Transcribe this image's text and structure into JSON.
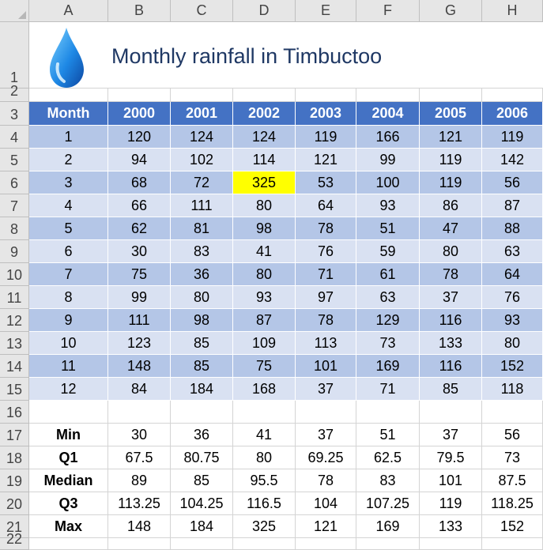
{
  "sheet": {
    "columns": [
      "A",
      "B",
      "C",
      "D",
      "E",
      "F",
      "G",
      "H"
    ],
    "rows": [
      "1",
      "2",
      "3",
      "4",
      "5",
      "6",
      "7",
      "8",
      "9",
      "10",
      "11",
      "12",
      "13",
      "14",
      "15",
      "16",
      "17",
      "18",
      "19",
      "20",
      "21",
      "22"
    ],
    "title": "Monthly rainfall in Timbuctoo",
    "table": {
      "headers": [
        "Month",
        "2000",
        "2001",
        "2002",
        "2003",
        "2004",
        "2005",
        "2006"
      ],
      "rows": [
        [
          "1",
          "120",
          "124",
          "124",
          "119",
          "166",
          "121",
          "119"
        ],
        [
          "2",
          "94",
          "102",
          "114",
          "121",
          "99",
          "119",
          "142"
        ],
        [
          "3",
          "68",
          "72",
          "325",
          "53",
          "100",
          "119",
          "56"
        ],
        [
          "4",
          "66",
          "111",
          "80",
          "64",
          "93",
          "86",
          "87"
        ],
        [
          "5",
          "62",
          "81",
          "98",
          "78",
          "51",
          "47",
          "88"
        ],
        [
          "6",
          "30",
          "83",
          "41",
          "76",
          "59",
          "80",
          "63"
        ],
        [
          "7",
          "75",
          "36",
          "80",
          "71",
          "61",
          "78",
          "64"
        ],
        [
          "8",
          "99",
          "80",
          "93",
          "97",
          "63",
          "37",
          "76"
        ],
        [
          "9",
          "111",
          "98",
          "87",
          "78",
          "129",
          "116",
          "93"
        ],
        [
          "10",
          "123",
          "85",
          "109",
          "113",
          "73",
          "133",
          "80"
        ],
        [
          "11",
          "148",
          "85",
          "75",
          "101",
          "169",
          "116",
          "152"
        ],
        [
          "12",
          "84",
          "184",
          "168",
          "37",
          "71",
          "85",
          "118"
        ]
      ],
      "highlight_color": "#ffff00",
      "header_color": "#4472c4",
      "band_colors": [
        "#b4c6e7",
        "#d9e1f2"
      ]
    },
    "stats": [
      [
        "Min",
        "30",
        "36",
        "41",
        "37",
        "51",
        "37",
        "56"
      ],
      [
        "Q1",
        "67.5",
        "80.75",
        "80",
        "69.25",
        "62.5",
        "79.5",
        "73"
      ],
      [
        "Median",
        "89",
        "85",
        "95.5",
        "78",
        "83",
        "101",
        "87.5"
      ],
      [
        "Q3",
        "113.25",
        "104.25",
        "116.5",
        "104",
        "107.25",
        "119",
        "118.25"
      ],
      [
        "Max",
        "148",
        "184",
        "325",
        "121",
        "169",
        "133",
        "152"
      ]
    ],
    "icon": "water-drop-icon"
  }
}
